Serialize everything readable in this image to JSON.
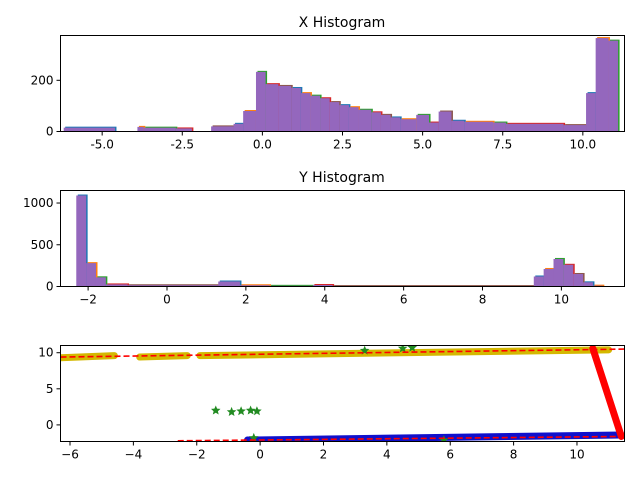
{
  "chart_data": [
    {
      "type": "bar",
      "title": "X Histogram",
      "xlabel": "",
      "ylabel": "",
      "xlim": [
        -6.3,
        11.3
      ],
      "ylim": [
        0,
        375
      ],
      "xticks": [
        "-5.0",
        "-2.5",
        "0.0",
        "2.5",
        "5.0",
        "7.5",
        "10.0"
      ],
      "yticks": [
        "0",
        "200"
      ],
      "bar_color": "#9467bd",
      "edge_colors": [
        "#1f77b4",
        "#ff7f0e",
        "#2ca02c",
        "#d62728",
        "#8c564b"
      ],
      "bins": [
        {
          "x0": -6.2,
          "x1": -4.6,
          "h": 15
        },
        {
          "x0": -3.9,
          "x1": -3.7,
          "h": 18
        },
        {
          "x0": -3.7,
          "x1": -2.7,
          "h": 15
        },
        {
          "x0": -2.7,
          "x1": -2.2,
          "h": 12
        },
        {
          "x0": -1.6,
          "x1": -0.9,
          "h": 20
        },
        {
          "x0": -0.9,
          "x1": -0.6,
          "h": 30
        },
        {
          "x0": -0.6,
          "x1": -0.2,
          "h": 80
        },
        {
          "x0": -0.2,
          "x1": 0.1,
          "h": 233
        },
        {
          "x0": 0.1,
          "x1": 0.5,
          "h": 185
        },
        {
          "x0": 0.5,
          "x1": 0.9,
          "h": 178
        },
        {
          "x0": 0.9,
          "x1": 1.2,
          "h": 170
        },
        {
          "x0": 1.2,
          "x1": 1.5,
          "h": 150
        },
        {
          "x0": 1.5,
          "x1": 1.8,
          "h": 140
        },
        {
          "x0": 1.8,
          "x1": 2.1,
          "h": 130
        },
        {
          "x0": 2.1,
          "x1": 2.4,
          "h": 115
        },
        {
          "x0": 2.4,
          "x1": 2.7,
          "h": 103
        },
        {
          "x0": 2.7,
          "x1": 3.0,
          "h": 95
        },
        {
          "x0": 3.0,
          "x1": 3.4,
          "h": 85
        },
        {
          "x0": 3.4,
          "x1": 3.7,
          "h": 75
        },
        {
          "x0": 3.7,
          "x1": 4.0,
          "h": 65
        },
        {
          "x0": 4.0,
          "x1": 4.3,
          "h": 55
        },
        {
          "x0": 4.3,
          "x1": 4.8,
          "h": 48
        },
        {
          "x0": 4.8,
          "x1": 5.2,
          "h": 65
        },
        {
          "x0": 5.2,
          "x1": 5.5,
          "h": 35
        },
        {
          "x0": 5.5,
          "x1": 5.9,
          "h": 78
        },
        {
          "x0": 5.9,
          "x1": 6.3,
          "h": 42
        },
        {
          "x0": 6.3,
          "x1": 7.2,
          "h": 38
        },
        {
          "x0": 7.2,
          "x1": 7.6,
          "h": 35
        },
        {
          "x0": 7.6,
          "x1": 9.4,
          "h": 30
        },
        {
          "x0": 9.4,
          "x1": 10.1,
          "h": 25
        },
        {
          "x0": 10.1,
          "x1": 10.4,
          "h": 150
        },
        {
          "x0": 10.4,
          "x1": 10.8,
          "h": 365
        },
        {
          "x0": 10.8,
          "x1": 11.1,
          "h": 355
        }
      ]
    },
    {
      "type": "bar",
      "title": "Y Histogram",
      "xlabel": "",
      "ylabel": "",
      "xlim": [
        -2.7,
        11.6
      ],
      "ylim": [
        0,
        1150
      ],
      "xticks": [
        "−2",
        "0",
        "2",
        "4",
        "6",
        "8",
        "10"
      ],
      "yticks": [
        "0",
        "500",
        "1000"
      ],
      "bar_color": "#9467bd",
      "edge_colors": [
        "#1f77b4",
        "#ff7f0e",
        "#2ca02c",
        "#d62728",
        "#8c564b"
      ],
      "bins": [
        {
          "x0": -2.3,
          "x1": -2.05,
          "h": 1090
        },
        {
          "x0": -2.05,
          "x1": -1.8,
          "h": 280
        },
        {
          "x0": -1.8,
          "x1": -1.55,
          "h": 110
        },
        {
          "x0": -1.55,
          "x1": -1.0,
          "h": 25
        },
        {
          "x0": -1.0,
          "x1": 1.3,
          "h": 15
        },
        {
          "x0": 1.3,
          "x1": 1.85,
          "h": 60
        },
        {
          "x0": 1.85,
          "x1": 2.6,
          "h": 15
        },
        {
          "x0": 2.6,
          "x1": 3.7,
          "h": 8
        },
        {
          "x0": 3.7,
          "x1": 4.2,
          "h": 18
        },
        {
          "x0": 4.2,
          "x1": 9.3,
          "h": 5
        },
        {
          "x0": 9.3,
          "x1": 9.55,
          "h": 120
        },
        {
          "x0": 9.55,
          "x1": 9.8,
          "h": 210
        },
        {
          "x0": 9.8,
          "x1": 10.05,
          "h": 330
        },
        {
          "x0": 10.05,
          "x1": 10.3,
          "h": 260
        },
        {
          "x0": 10.3,
          "x1": 10.55,
          "h": 150
        },
        {
          "x0": 10.55,
          "x1": 10.8,
          "h": 50
        },
        {
          "x0": 10.8,
          "x1": 11.05,
          "h": 10
        }
      ]
    },
    {
      "type": "scatter",
      "title": "",
      "xlabel": "",
      "ylabel": "",
      "xlim": [
        -6.3,
        11.5
      ],
      "ylim": [
        -2.3,
        11.0
      ],
      "xticks": [
        "−6",
        "−4",
        "−2",
        "0",
        "2",
        "4",
        "6",
        "8",
        "10"
      ],
      "yticks": [
        "0",
        "5",
        "10"
      ],
      "series": [
        {
          "color": "#d4b800",
          "marker": "thick-band",
          "segments": [
            [
              -6.3,
              9.3,
              -4.6,
              9.6
            ],
            [
              -3.8,
              9.4,
              -2.3,
              9.6
            ],
            [
              -1.9,
              9.6,
              11.0,
              10.4
            ]
          ]
        },
        {
          "color": "#1010cc",
          "marker": "thick-band",
          "segments": [
            [
              -0.4,
              -2.1,
              11.4,
              -1.4
            ]
          ]
        },
        {
          "color": "#ff0000",
          "marker": "thick-band",
          "segments": [
            [
              10.5,
              10.6,
              11.4,
              -1.6
            ]
          ]
        },
        {
          "color": "#228b22",
          "marker": "star",
          "points": [
            [
              -1.4,
              2.0
            ],
            [
              -0.9,
              1.8
            ],
            [
              -0.6,
              1.9
            ],
            [
              -0.3,
              2.0
            ],
            [
              -0.1,
              1.9
            ],
            [
              -0.2,
              -1.8
            ],
            [
              3.3,
              10.3
            ],
            [
              4.5,
              10.6
            ],
            [
              4.8,
              10.7
            ],
            [
              5.8,
              -2.1
            ]
          ]
        },
        {
          "color": "#ff0000",
          "marker": "dashed-line",
          "segments": [
            [
              -6.3,
              9.4,
              11.5,
              10.5
            ],
            [
              -2.6,
              -2.2,
              11.5,
              -1.6
            ]
          ]
        }
      ]
    }
  ]
}
